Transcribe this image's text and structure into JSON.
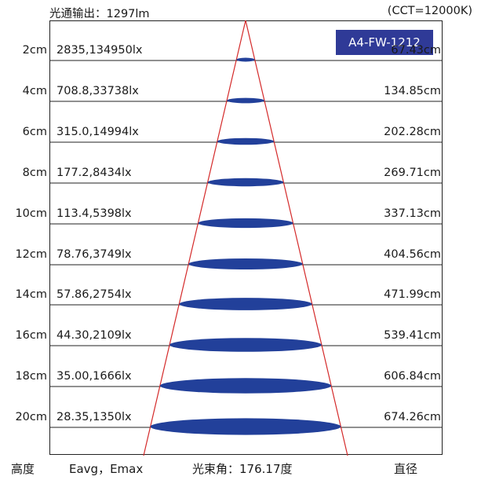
{
  "header": {
    "flux_label": "光通输出：1297lm",
    "cct_label": "(CCT=12000K)",
    "model": "A4-FW-1212"
  },
  "rows": [
    {
      "distance": "2cm",
      "lux": "2835,134950lx",
      "diameter": "67.43cm"
    },
    {
      "distance": "4cm",
      "lux": "708.8,33738lx",
      "diameter": "134.85cm"
    },
    {
      "distance": "6cm",
      "lux": "315.0,14994lx",
      "diameter": "202.28cm"
    },
    {
      "distance": "8cm",
      "lux": "177.2,8434lx",
      "diameter": "269.71cm"
    },
    {
      "distance": "10cm",
      "lux": "113.4,5398lx",
      "diameter": "337.13cm"
    },
    {
      "distance": "12cm",
      "lux": "78.76,3749lx",
      "diameter": "404.56cm"
    },
    {
      "distance": "14cm",
      "lux": "57.86,2754lx",
      "diameter": "471.99cm"
    },
    {
      "distance": "16cm",
      "lux": "44.30,2109lx",
      "diameter": "539.41cm"
    },
    {
      "distance": "18cm",
      "lux": "35.00,1666lx",
      "diameter": "606.84cm"
    },
    {
      "distance": "20cm",
      "lux": "28.35,1350lx",
      "diameter": "674.26cm"
    }
  ],
  "footer": {
    "height_label": "高度",
    "eavg_label": "Eavg，Emax",
    "beam_angle_label": "光束角：176.17度",
    "diameter_label": "直径"
  },
  "colors": {
    "beam_line": "#d42a2a",
    "ellipse_fill": "#22409a",
    "badge_bg": "#2f3a97",
    "grid_line": "#222222"
  }
}
